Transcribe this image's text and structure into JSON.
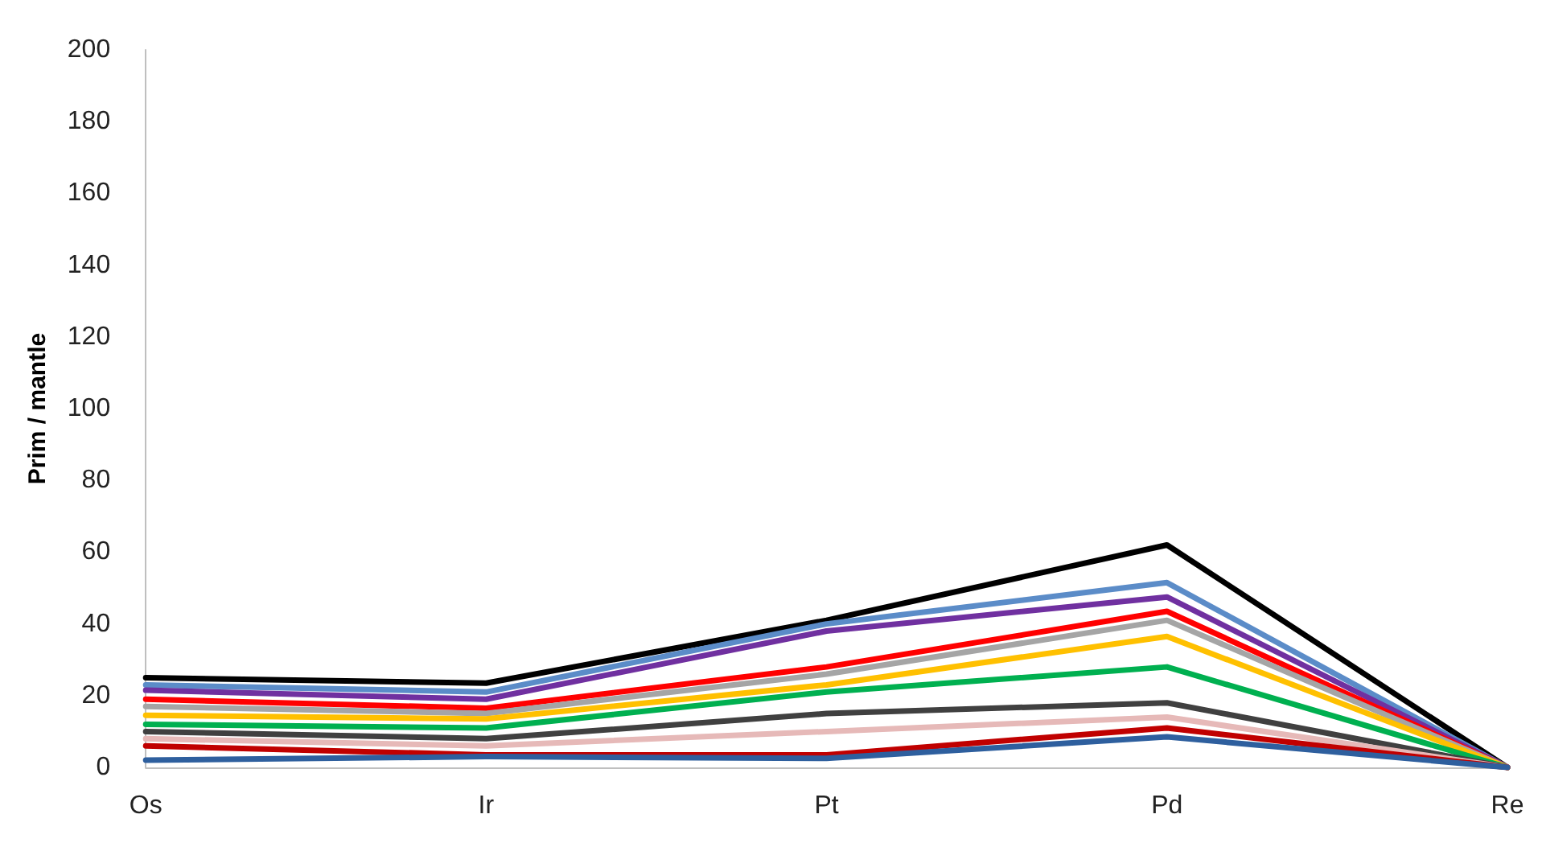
{
  "chart_data": {
    "type": "line",
    "ylabel": "Prim / mantle",
    "categories": [
      "Os",
      "Ir",
      "Pt",
      "Pd",
      "Re"
    ],
    "ylim": [
      0,
      200
    ],
    "yticks": [
      0,
      20,
      40,
      60,
      80,
      100,
      120,
      140,
      160,
      180,
      200
    ],
    "grid": false,
    "marker": "none",
    "line_style": "solid",
    "series": [
      {
        "color": "#000000",
        "values": [
          25,
          23.5,
          41,
          62,
          0
        ]
      },
      {
        "color": "#5b8cc8",
        "values": [
          23,
          21,
          40,
          51.5,
          0
        ]
      },
      {
        "color": "#7030a0",
        "values": [
          21.5,
          19,
          38,
          47.5,
          0
        ]
      },
      {
        "color": "#ff0000",
        "values": [
          19,
          16.5,
          28,
          43.5,
          0
        ]
      },
      {
        "color": "#a5a5a5",
        "values": [
          17,
          15,
          26,
          41,
          0
        ]
      },
      {
        "color": "#ffc000",
        "values": [
          14.5,
          13.5,
          23,
          36.5,
          0
        ]
      },
      {
        "color": "#00b050",
        "values": [
          12,
          11,
          21,
          28,
          0
        ]
      },
      {
        "color": "#404040",
        "values": [
          10,
          8,
          15,
          18,
          0
        ]
      },
      {
        "color": "#e6b9b8",
        "values": [
          8,
          6,
          10,
          14,
          0
        ]
      },
      {
        "color": "#c00000",
        "values": [
          6,
          3.5,
          3.5,
          11,
          0
        ]
      },
      {
        "color": "#2e5f9e",
        "values": [
          2,
          3,
          2.5,
          8.5,
          0
        ]
      }
    ]
  }
}
